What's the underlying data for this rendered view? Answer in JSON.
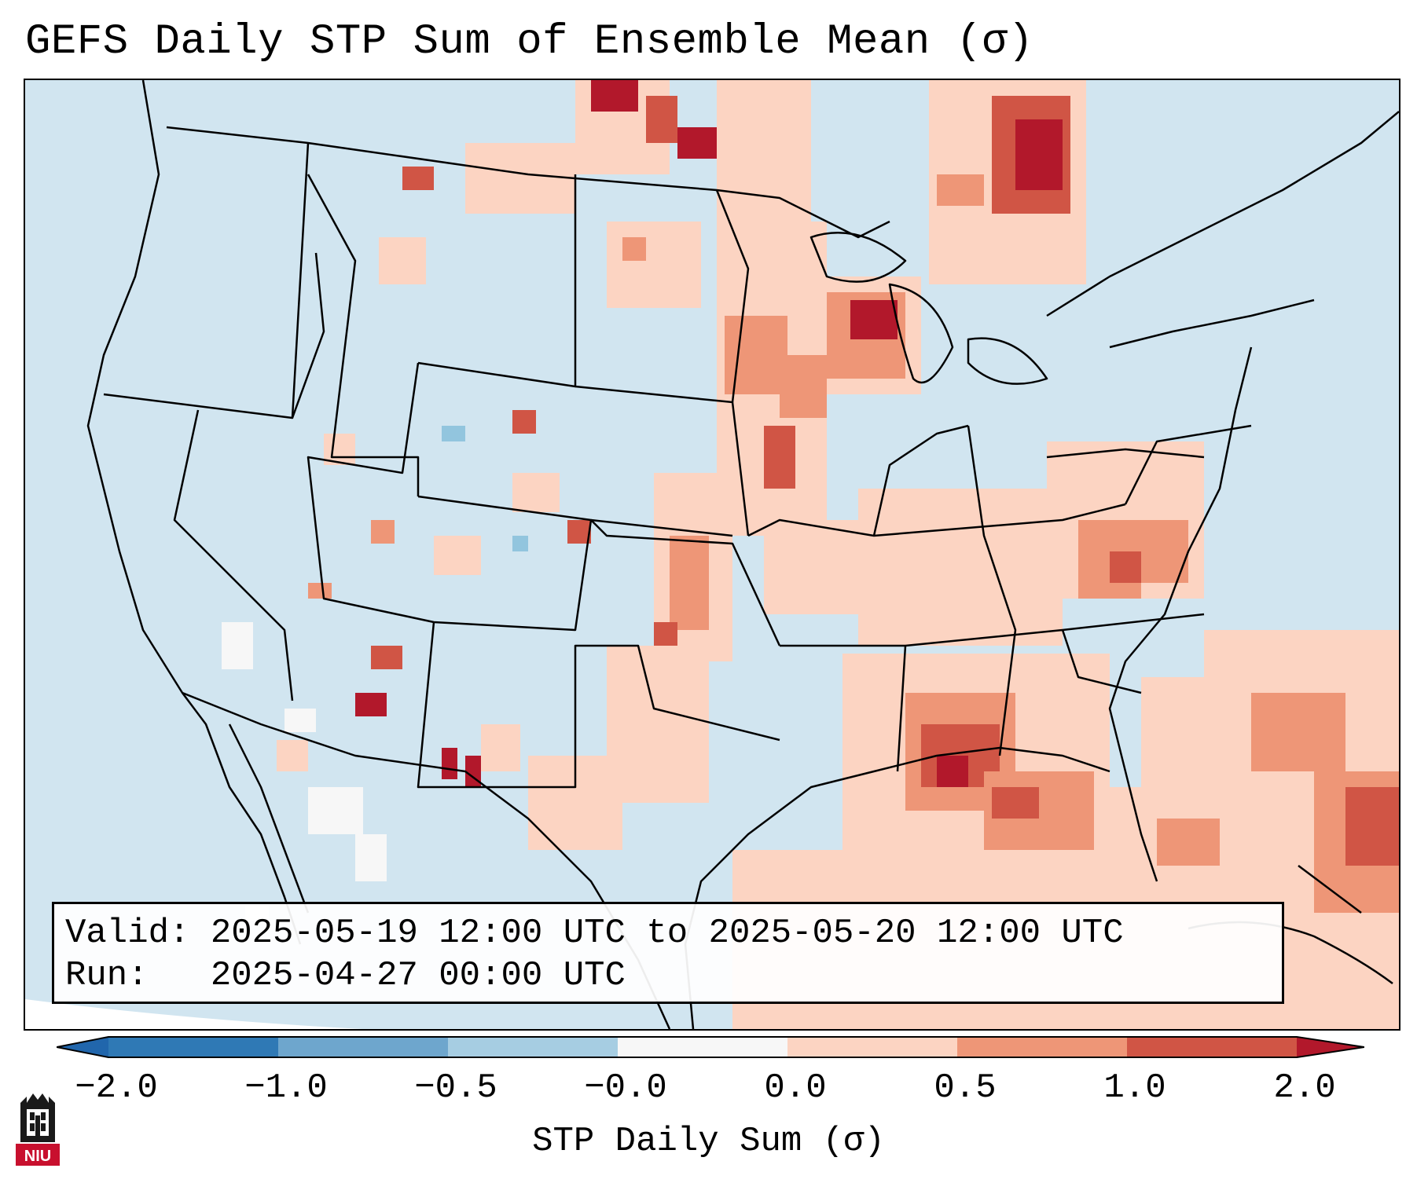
{
  "title": "GEFS Daily STP Sum of Ensemble Mean (σ)",
  "info": {
    "valid_line": "Valid: 2025-05-19 12:00 UTC to 2025-05-20 12:00 UTC",
    "run_line": "Run:   2025-04-27 00:00 UTC"
  },
  "colorbar": {
    "label": "STP Daily Sum (σ)",
    "ticks": [
      "−2.0",
      "−1.0",
      "−0.5",
      "−0.0",
      "0.0",
      "0.5",
      "1.0",
      "2.0"
    ],
    "bins": [
      {
        "color": "#2f79b5"
      },
      {
        "color": "#6ea6cd"
      },
      {
        "color": "#a6cde2"
      },
      {
        "color": "#f7f7f7"
      },
      {
        "color": "#fcd4c2"
      },
      {
        "color": "#ee9677"
      },
      {
        "color": "#d05545"
      },
      {
        "color": "#b2182b"
      }
    ],
    "under_color": "#2166ac",
    "over_color": "#b2182b"
  },
  "palette": {
    "background": "#d1e5f0",
    "neutral": "#f7f7f7",
    "light_blue": "#92c5de",
    "light_red": "#fcd4c2",
    "medium_red": "#ee9677",
    "strong_red": "#d05545",
    "dark_red": "#b2182b"
  },
  "logo": {
    "text": "NIU",
    "color": "#c8102e"
  }
}
